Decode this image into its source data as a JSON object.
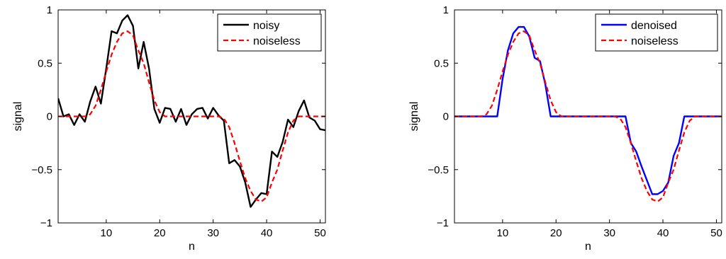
{
  "chart_data": [
    {
      "type": "line",
      "xlabel": "n",
      "ylabel": "signal",
      "xlim": [
        1,
        51
      ],
      "ylim": [
        -1,
        1
      ],
      "xticks": [
        10,
        20,
        30,
        40,
        50
      ],
      "xtick_labels": [
        "10",
        "20",
        "30",
        "40",
        "50"
      ],
      "yticks": [
        -1,
        -0.5,
        0,
        0.5,
        1
      ],
      "ytick_labels": [
        "−1",
        "−0.5",
        "0",
        "0.5",
        "1"
      ],
      "legend_position": "top-right",
      "grid": false,
      "series": [
        {
          "name": "noisy",
          "color": "#000000",
          "style": "solid",
          "x": [
            1,
            2,
            3,
            4,
            5,
            6,
            7,
            8,
            9,
            10,
            11,
            12,
            13,
            14,
            15,
            16,
            17,
            18,
            19,
            20,
            21,
            22,
            23,
            24,
            25,
            26,
            27,
            28,
            29,
            30,
            31,
            32,
            33,
            34,
            35,
            36,
            37,
            38,
            39,
            40,
            41,
            42,
            43,
            44,
            45,
            46,
            47,
            48,
            49,
            50,
            51
          ],
          "y": [
            0.17,
            0.0,
            0.02,
            -0.08,
            0.02,
            -0.05,
            0.14,
            0.28,
            0.12,
            0.45,
            0.8,
            0.78,
            0.9,
            0.95,
            0.85,
            0.45,
            0.7,
            0.45,
            0.07,
            -0.06,
            0.08,
            0.07,
            -0.05,
            0.07,
            -0.08,
            0.02,
            0.07,
            0.08,
            -0.02,
            0.08,
            0.01,
            -0.04,
            -0.44,
            -0.41,
            -0.47,
            -0.62,
            -0.85,
            -0.78,
            -0.72,
            -0.73,
            -0.33,
            -0.38,
            -0.24,
            -0.03,
            -0.1,
            0.05,
            0.15,
            -0.01,
            -0.04,
            -0.12,
            -0.13
          ]
        },
        {
          "name": "noiseless",
          "color": "#ff0000",
          "style": "dashed",
          "x": [
            1,
            2,
            3,
            4,
            5,
            6,
            7,
            8,
            9,
            10,
            11,
            12,
            13,
            14,
            15,
            16,
            17,
            18,
            19,
            20,
            21,
            22,
            23,
            24,
            25,
            26,
            27,
            28,
            29,
            30,
            31,
            32,
            33,
            34,
            35,
            36,
            37,
            38,
            39,
            40,
            41,
            42,
            43,
            44,
            45,
            46,
            47,
            48,
            49,
            50,
            51
          ],
          "y": [
            0,
            0,
            0,
            0,
            0,
            0,
            0.02,
            0.1,
            0.25,
            0.42,
            0.58,
            0.7,
            0.78,
            0.8,
            0.76,
            0.62,
            0.5,
            0.32,
            0.15,
            0.04,
            0,
            0,
            0,
            0,
            0,
            0,
            0,
            0,
            0,
            0,
            0,
            -0.02,
            -0.1,
            -0.25,
            -0.42,
            -0.58,
            -0.7,
            -0.78,
            -0.8,
            -0.76,
            -0.62,
            -0.5,
            -0.32,
            -0.15,
            -0.04,
            0,
            0,
            0,
            0,
            0,
            0
          ]
        }
      ]
    },
    {
      "type": "line",
      "xlabel": "n",
      "ylabel": "signal",
      "xlim": [
        1,
        51
      ],
      "ylim": [
        -1,
        1
      ],
      "xticks": [
        10,
        20,
        30,
        40,
        50
      ],
      "xtick_labels": [
        "10",
        "20",
        "30",
        "40",
        "50"
      ],
      "yticks": [
        -1,
        -0.5,
        0,
        0.5,
        1
      ],
      "ytick_labels": [
        "−1",
        "−0.5",
        "0",
        "0.5",
        "1"
      ],
      "legend_position": "top-right",
      "grid": false,
      "series": [
        {
          "name": "denoised",
          "color": "#0000ff",
          "style": "solid",
          "x": [
            1,
            2,
            3,
            4,
            5,
            6,
            7,
            8,
            9,
            10,
            11,
            12,
            13,
            14,
            15,
            16,
            17,
            18,
            19,
            20,
            21,
            22,
            23,
            24,
            25,
            26,
            27,
            28,
            29,
            30,
            31,
            32,
            33,
            34,
            35,
            36,
            37,
            38,
            39,
            40,
            41,
            42,
            43,
            44,
            45,
            46,
            47,
            48,
            49,
            50,
            51
          ],
          "y": [
            0,
            0,
            0,
            0,
            0,
            0,
            0,
            0,
            0,
            0.35,
            0.62,
            0.78,
            0.84,
            0.84,
            0.75,
            0.55,
            0.52,
            0.3,
            0,
            0,
            0,
            0,
            0,
            0,
            0,
            0,
            0,
            0,
            0,
            0,
            0,
            0,
            0,
            -0.25,
            -0.33,
            -0.47,
            -0.6,
            -0.73,
            -0.73,
            -0.7,
            -0.62,
            -0.37,
            -0.25,
            0,
            0,
            0,
            0,
            0,
            0,
            0,
            0
          ]
        },
        {
          "name": "noiseless",
          "color": "#ff0000",
          "style": "dashed",
          "x": [
            1,
            2,
            3,
            4,
            5,
            6,
            7,
            8,
            9,
            10,
            11,
            12,
            13,
            14,
            15,
            16,
            17,
            18,
            19,
            20,
            21,
            22,
            23,
            24,
            25,
            26,
            27,
            28,
            29,
            30,
            31,
            32,
            33,
            34,
            35,
            36,
            37,
            38,
            39,
            40,
            41,
            42,
            43,
            44,
            45,
            46,
            47,
            48,
            49,
            50,
            51
          ],
          "y": [
            0,
            0,
            0,
            0,
            0,
            0,
            0.02,
            0.1,
            0.25,
            0.42,
            0.58,
            0.7,
            0.78,
            0.8,
            0.76,
            0.62,
            0.5,
            0.32,
            0.15,
            0.04,
            0,
            0,
            0,
            0,
            0,
            0,
            0,
            0,
            0,
            0,
            0,
            -0.02,
            -0.1,
            -0.25,
            -0.42,
            -0.58,
            -0.7,
            -0.78,
            -0.8,
            -0.76,
            -0.62,
            -0.5,
            -0.32,
            -0.15,
            -0.04,
            0,
            0,
            0,
            0,
            0,
            0
          ]
        }
      ]
    }
  ]
}
